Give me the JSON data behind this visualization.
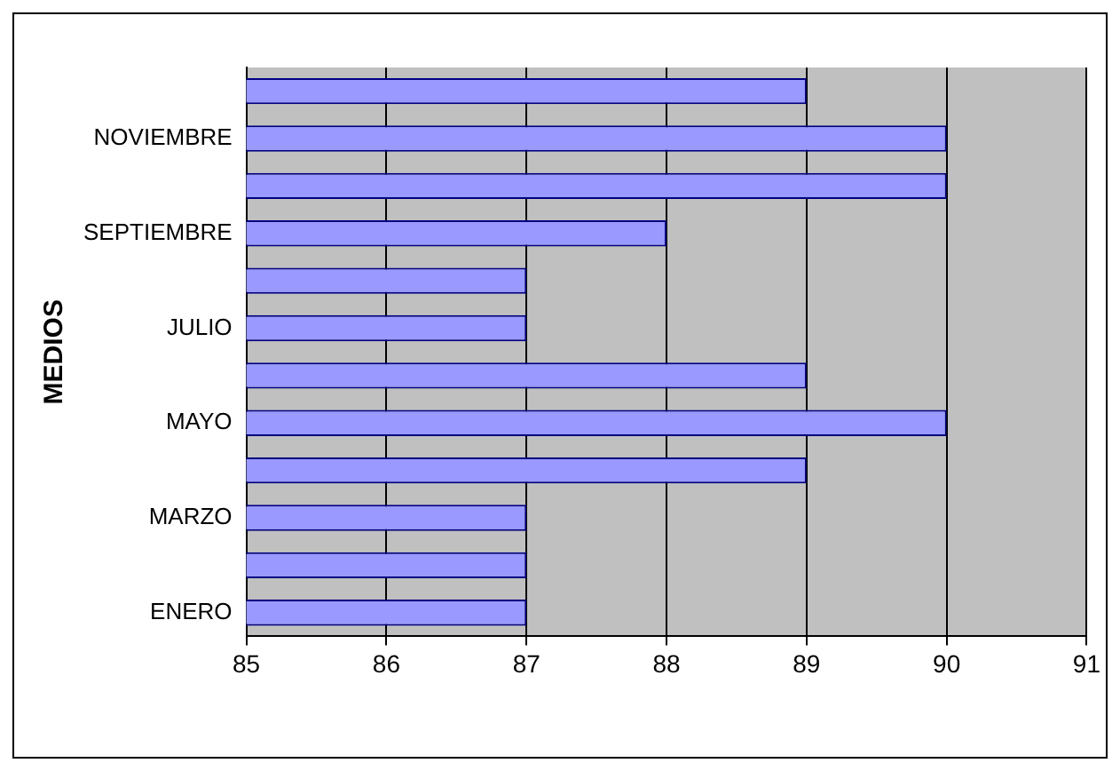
{
  "chart_data": {
    "type": "bar",
    "orientation": "horizontal",
    "ylabel": "MEDIOS",
    "categories": [
      null,
      "NOVIEMBRE",
      null,
      "SEPTIEMBRE",
      null,
      "JULIO",
      null,
      "MAYO",
      null,
      "MARZO",
      null,
      "ENERO"
    ],
    "values": [
      89,
      90,
      90,
      88,
      87,
      87,
      89,
      90,
      89,
      87,
      87,
      87
    ],
    "color": "#9999ff",
    "xlim": [
      85,
      91
    ],
    "xticks": [
      85,
      86,
      87,
      88,
      89,
      90,
      91
    ],
    "grid": "x",
    "legend": false
  }
}
